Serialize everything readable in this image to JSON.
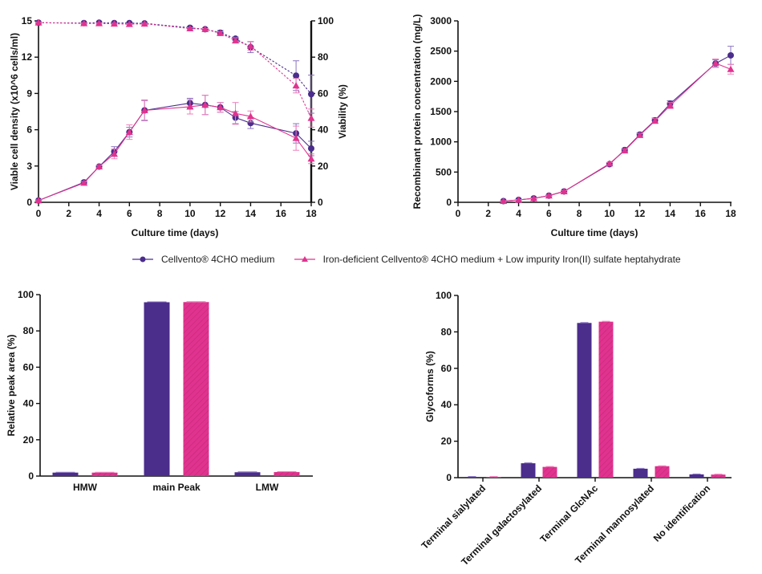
{
  "colors": {
    "series_a": "#4b2d8c",
    "series_b": "#e0338f",
    "series_a_err": "#8a74c0",
    "series_b_err": "#ec7fbb",
    "axis": "#111111"
  },
  "legend": [
    {
      "name": "Cellvento® 4CHO medium",
      "marker": "circle"
    },
    {
      "name": "Iron-deficient Cellvento® 4CHO medium + Low impurity Iron(II) sulfate heptahydrate",
      "marker": "triangle"
    }
  ],
  "chart_data": [
    {
      "id": "vcd_viability",
      "type": "line",
      "xlabel": "Culture time (days)",
      "ylabel": "Viable cell density (x10^6 cells/ml)",
      "y2label": "Viability (%)",
      "xlim": [
        0,
        18
      ],
      "ylim": [
        0,
        15
      ],
      "y2lim": [
        0,
        100
      ],
      "xticks": [
        "0",
        "2",
        "4",
        "6",
        "8",
        "10",
        "12",
        "14",
        "16",
        "18"
      ],
      "yticks": [
        "0",
        "3",
        "6",
        "9",
        "12",
        "15"
      ],
      "y2ticks": [
        "0",
        "20",
        "40",
        "60",
        "80",
        "100"
      ],
      "x": [
        0,
        3,
        4,
        5,
        6,
        7,
        10,
        11,
        12,
        13,
        14,
        17,
        18
      ],
      "series": [
        {
          "name": "Cellvento® 4CHO medium - VCD",
          "axis": "left",
          "style": "solid",
          "marker": "circle",
          "values": [
            0.15,
            1.65,
            2.95,
            4.2,
            5.8,
            7.6,
            8.2,
            8.05,
            7.85,
            7.0,
            6.55,
            5.7,
            4.45
          ],
          "errors": [
            0.05,
            0.1,
            0.1,
            0.4,
            0.4,
            0.85,
            0.4,
            0.8,
            0.4,
            0.5,
            0.45,
            0.8,
            0.6
          ]
        },
        {
          "name": "Iron-deficient Cellvento® 4CHO medium + Low impurity Iron(II) sulfate heptahydrate - VCD",
          "axis": "left",
          "style": "solid",
          "marker": "triangle",
          "values": [
            0.15,
            1.6,
            2.95,
            4.0,
            5.8,
            7.6,
            7.9,
            8.05,
            7.85,
            7.35,
            7.1,
            5.3,
            3.6
          ],
          "errors": [
            0.05,
            0.1,
            0.1,
            0.4,
            0.6,
            0.8,
            0.6,
            0.8,
            0.4,
            0.9,
            0.45,
            1.0,
            0.4
          ]
        },
        {
          "name": "Cellvento® 4CHO medium - Viability",
          "axis": "right",
          "style": "dashed",
          "marker": "circle",
          "values": [
            99,
            98.8,
            99,
            98.8,
            98.8,
            98.6,
            96.2,
            95.4,
            93.5,
            90.2,
            85.5,
            69.8,
            59.6
          ],
          "errors": [
            0.3,
            0.3,
            0.3,
            0.3,
            0.3,
            0.3,
            0.4,
            0.5,
            1.2,
            0.9,
            3.0,
            8.2,
            10.5
          ]
        },
        {
          "name": "Iron-deficient Cellvento® 4CHO medium + Low impurity Iron(II) sulfate heptahydrate - Viability",
          "axis": "right",
          "style": "dashed",
          "marker": "triangle",
          "values": [
            99,
            98.6,
            98.6,
            98.4,
            98.2,
            98.4,
            95.8,
            95.4,
            93.2,
            89.2,
            86.2,
            64.3,
            46.4
          ],
          "errors": [
            0.3,
            0.3,
            0.3,
            0.3,
            0.3,
            0.3,
            0.4,
            0.4,
            0.8,
            1.5,
            2.5,
            4.0,
            5.0
          ]
        }
      ]
    },
    {
      "id": "protein",
      "type": "line",
      "xlabel": "Culture time (days)",
      "ylabel": "Recombinant protein concentration (mg/L)",
      "xlim": [
        0,
        18
      ],
      "ylim": [
        0,
        3000
      ],
      "xticks": [
        "0",
        "2",
        "4",
        "6",
        "8",
        "10",
        "12",
        "14",
        "16",
        "18"
      ],
      "yticks": [
        "0",
        "500",
        "1000",
        "1500",
        "2000",
        "2500",
        "3000"
      ],
      "x": [
        3,
        4,
        5,
        6,
        7,
        10,
        11,
        12,
        13,
        14,
        17,
        18
      ],
      "series": [
        {
          "name": "Cellvento® 4CHO medium",
          "marker": "circle",
          "values": [
            20,
            40,
            65,
            110,
            180,
            630,
            865,
            1120,
            1355,
            1630,
            2295,
            2430
          ],
          "errors": [
            5,
            5,
            5,
            10,
            15,
            20,
            25,
            30,
            40,
            50,
            60,
            150
          ]
        },
        {
          "name": "Iron-deficient Cellvento® 4CHO medium + Low impurity Iron(II) sulfate heptahydrate",
          "marker": "triangle",
          "values": [
            20,
            40,
            65,
            110,
            180,
            640,
            855,
            1110,
            1345,
            1600,
            2300,
            2200
          ],
          "errors": [
            5,
            5,
            5,
            10,
            15,
            20,
            25,
            30,
            40,
            50,
            70,
            80
          ]
        }
      ]
    },
    {
      "id": "peak_area",
      "type": "bar",
      "ylabel": "Relative peak area (%)",
      "ylim": [
        0,
        100
      ],
      "yticks": [
        "0",
        "20",
        "40",
        "60",
        "80",
        "100"
      ],
      "categories": [
        "HMW",
        "main Peak",
        "LMW"
      ],
      "series": [
        {
          "name": "Cellvento® 4CHO medium",
          "values": [
            1.9,
            95.8,
            2.1
          ],
          "pattern": "solid"
        },
        {
          "name": "Iron-deficient Cellvento® 4CHO medium + Low impurity Iron(II) sulfate heptahydrate",
          "values": [
            1.9,
            95.9,
            2.2
          ],
          "pattern": "hatched"
        }
      ]
    },
    {
      "id": "glycoforms",
      "type": "bar",
      "ylabel": "Glycoforms (%)",
      "ylim": [
        0,
        100
      ],
      "yticks": [
        "0",
        "20",
        "40",
        "60",
        "80",
        "100"
      ],
      "categories": [
        "Terminal sialylated",
        "Terminal galactosylated",
        "Terminal GlcNAc",
        "Terminal mannosylated",
        "No identification"
      ],
      "series": [
        {
          "name": "Cellvento® 4CHO medium",
          "values": [
            0.4,
            7.9,
            84.9,
            4.9,
            1.8
          ],
          "pattern": "solid"
        },
        {
          "name": "Iron-deficient Cellvento® 4CHO medium + Low impurity Iron(II) sulfate heptahydrate",
          "values": [
            0.4,
            5.9,
            85.6,
            6.3,
            1.7
          ],
          "pattern": "hatched"
        }
      ]
    }
  ]
}
